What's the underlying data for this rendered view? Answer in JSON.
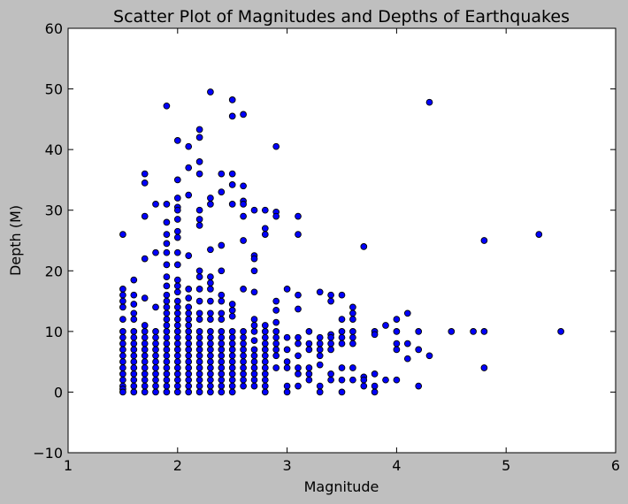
{
  "chart_data": {
    "type": "scatter",
    "title": "Scatter Plot of Magnitudes and Depths of Earthquakes",
    "xlabel": "Magnitude",
    "ylabel": "Depth (M)",
    "xlim": [
      1,
      6
    ],
    "ylim": [
      -10,
      60
    ],
    "xticks": [
      "1",
      "2",
      "3",
      "4",
      "5",
      "6"
    ],
    "yticks": [
      "−10",
      "0",
      "10",
      "20",
      "30",
      "40",
      "50",
      "60"
    ],
    "grid": false,
    "marker_color": "#0000ff",
    "marker_edge": "#000000",
    "points": [
      [
        1.5,
        26
      ],
      [
        1.5,
        17
      ],
      [
        1.5,
        16
      ],
      [
        1.5,
        15
      ],
      [
        1.5,
        14
      ],
      [
        1.5,
        12
      ],
      [
        1.5,
        10
      ],
      [
        1.5,
        9
      ],
      [
        1.5,
        8
      ],
      [
        1.5,
        7
      ],
      [
        1.5,
        6
      ],
      [
        1.5,
        5
      ],
      [
        1.5,
        4
      ],
      [
        1.5,
        3
      ],
      [
        1.5,
        2
      ],
      [
        1.5,
        1
      ],
      [
        1.5,
        0.5
      ],
      [
        1.5,
        0
      ],
      [
        1.6,
        18.5
      ],
      [
        1.6,
        16
      ],
      [
        1.6,
        14.5
      ],
      [
        1.6,
        13
      ],
      [
        1.6,
        12
      ],
      [
        1.6,
        10
      ],
      [
        1.6,
        9
      ],
      [
        1.6,
        8
      ],
      [
        1.6,
        7
      ],
      [
        1.6,
        6
      ],
      [
        1.6,
        5
      ],
      [
        1.6,
        4
      ],
      [
        1.6,
        3
      ],
      [
        1.6,
        2
      ],
      [
        1.6,
        1
      ],
      [
        1.6,
        0
      ],
      [
        1.7,
        36
      ],
      [
        1.7,
        34.5
      ],
      [
        1.7,
        29
      ],
      [
        1.7,
        22
      ],
      [
        1.7,
        15.5
      ],
      [
        1.7,
        11
      ],
      [
        1.7,
        10
      ],
      [
        1.7,
        9
      ],
      [
        1.7,
        8
      ],
      [
        1.7,
        7
      ],
      [
        1.7,
        6
      ],
      [
        1.7,
        5
      ],
      [
        1.7,
        4
      ],
      [
        1.7,
        3
      ],
      [
        1.7,
        2
      ],
      [
        1.7,
        1
      ],
      [
        1.7,
        0
      ],
      [
        1.8,
        31
      ],
      [
        1.8,
        23
      ],
      [
        1.8,
        14
      ],
      [
        1.8,
        10
      ],
      [
        1.8,
        9
      ],
      [
        1.8,
        8
      ],
      [
        1.8,
        7
      ],
      [
        1.8,
        6
      ],
      [
        1.8,
        5
      ],
      [
        1.8,
        4
      ],
      [
        1.8,
        3
      ],
      [
        1.8,
        2
      ],
      [
        1.8,
        1
      ],
      [
        1.8,
        0
      ],
      [
        1.9,
        47.2
      ],
      [
        1.9,
        31
      ],
      [
        1.9,
        28
      ],
      [
        1.9,
        26
      ],
      [
        1.9,
        24.5
      ],
      [
        1.9,
        23
      ],
      [
        1.9,
        21
      ],
      [
        1.9,
        19
      ],
      [
        1.9,
        17.5
      ],
      [
        1.9,
        16
      ],
      [
        1.9,
        15
      ],
      [
        1.9,
        14
      ],
      [
        1.9,
        13
      ],
      [
        1.9,
        12
      ],
      [
        1.9,
        11
      ],
      [
        1.9,
        10
      ],
      [
        1.9,
        9
      ],
      [
        1.9,
        8
      ],
      [
        1.9,
        7
      ],
      [
        1.9,
        6
      ],
      [
        1.9,
        5
      ],
      [
        1.9,
        4
      ],
      [
        1.9,
        3
      ],
      [
        1.9,
        2
      ],
      [
        1.9,
        1
      ],
      [
        1.9,
        0
      ],
      [
        2.0,
        41.5
      ],
      [
        2.0,
        35
      ],
      [
        2.0,
        32
      ],
      [
        2.0,
        30.5
      ],
      [
        2.0,
        30
      ],
      [
        2.0,
        28.5
      ],
      [
        2.0,
        26.5
      ],
      [
        2.0,
        25.5
      ],
      [
        2.0,
        23
      ],
      [
        2.0,
        21
      ],
      [
        2.0,
        18.5
      ],
      [
        2.0,
        17.5
      ],
      [
        2.0,
        16.5
      ],
      [
        2.0,
        15
      ],
      [
        2.0,
        14
      ],
      [
        2.0,
        13
      ],
      [
        2.0,
        12
      ],
      [
        2.0,
        11
      ],
      [
        2.0,
        10
      ],
      [
        2.0,
        9
      ],
      [
        2.0,
        8
      ],
      [
        2.0,
        7
      ],
      [
        2.0,
        6
      ],
      [
        2.0,
        5
      ],
      [
        2.0,
        4
      ],
      [
        2.0,
        3
      ],
      [
        2.0,
        2
      ],
      [
        2.0,
        1
      ],
      [
        2.0,
        0
      ],
      [
        2.1,
        40.5
      ],
      [
        2.1,
        37
      ],
      [
        2.1,
        32.5
      ],
      [
        2.1,
        22.5
      ],
      [
        2.1,
        17
      ],
      [
        2.1,
        15.5
      ],
      [
        2.1,
        14
      ],
      [
        2.1,
        13
      ],
      [
        2.1,
        12
      ],
      [
        2.1,
        11
      ],
      [
        2.1,
        10
      ],
      [
        2.1,
        9
      ],
      [
        2.1,
        8
      ],
      [
        2.1,
        7
      ],
      [
        2.1,
        6
      ],
      [
        2.1,
        5
      ],
      [
        2.1,
        4
      ],
      [
        2.1,
        3
      ],
      [
        2.1,
        2
      ],
      [
        2.1,
        1
      ],
      [
        2.1,
        0
      ],
      [
        2.2,
        43.3
      ],
      [
        2.2,
        42
      ],
      [
        2.2,
        38
      ],
      [
        2.2,
        36
      ],
      [
        2.2,
        30
      ],
      [
        2.2,
        28.5
      ],
      [
        2.2,
        27.5
      ],
      [
        2.2,
        20
      ],
      [
        2.2,
        19
      ],
      [
        2.2,
        17
      ],
      [
        2.2,
        15
      ],
      [
        2.2,
        13
      ],
      [
        2.2,
        12
      ],
      [
        2.2,
        10
      ],
      [
        2.2,
        9
      ],
      [
        2.2,
        8
      ],
      [
        2.2,
        7
      ],
      [
        2.2,
        6
      ],
      [
        2.2,
        5
      ],
      [
        2.2,
        4
      ],
      [
        2.2,
        3
      ],
      [
        2.2,
        2
      ],
      [
        2.2,
        1
      ],
      [
        2.2,
        0
      ],
      [
        2.3,
        49.5
      ],
      [
        2.3,
        32
      ],
      [
        2.3,
        31
      ],
      [
        2.3,
        23.5
      ],
      [
        2.3,
        19
      ],
      [
        2.3,
        18
      ],
      [
        2.3,
        17
      ],
      [
        2.3,
        15
      ],
      [
        2.3,
        13
      ],
      [
        2.3,
        12
      ],
      [
        2.3,
        10
      ],
      [
        2.3,
        9
      ],
      [
        2.3,
        8
      ],
      [
        2.3,
        7
      ],
      [
        2.3,
        6
      ],
      [
        2.3,
        5
      ],
      [
        2.3,
        4
      ],
      [
        2.3,
        3
      ],
      [
        2.3,
        2
      ],
      [
        2.3,
        1
      ],
      [
        2.3,
        0
      ],
      [
        2.4,
        36
      ],
      [
        2.4,
        33
      ],
      [
        2.4,
        24.2
      ],
      [
        2.4,
        20
      ],
      [
        2.4,
        16
      ],
      [
        2.4,
        15
      ],
      [
        2.4,
        13
      ],
      [
        2.4,
        12
      ],
      [
        2.4,
        10
      ],
      [
        2.4,
        9
      ],
      [
        2.4,
        8
      ],
      [
        2.4,
        7
      ],
      [
        2.4,
        6
      ],
      [
        2.4,
        5
      ],
      [
        2.4,
        4
      ],
      [
        2.4,
        3
      ],
      [
        2.4,
        2
      ],
      [
        2.4,
        1
      ],
      [
        2.4,
        0
      ],
      [
        2.5,
        48.2
      ],
      [
        2.5,
        45.5
      ],
      [
        2.5,
        36
      ],
      [
        2.5,
        34.2
      ],
      [
        2.5,
        31
      ],
      [
        2.5,
        14.5
      ],
      [
        2.5,
        13.5
      ],
      [
        2.5,
        12.5
      ],
      [
        2.5,
        10
      ],
      [
        2.5,
        9
      ],
      [
        2.5,
        8
      ],
      [
        2.5,
        7
      ],
      [
        2.5,
        6
      ],
      [
        2.5,
        5
      ],
      [
        2.5,
        4
      ],
      [
        2.5,
        3
      ],
      [
        2.5,
        2
      ],
      [
        2.5,
        1
      ],
      [
        2.5,
        0
      ],
      [
        2.6,
        45.8
      ],
      [
        2.6,
        34
      ],
      [
        2.6,
        31.5
      ],
      [
        2.6,
        31
      ],
      [
        2.6,
        29
      ],
      [
        2.6,
        25
      ],
      [
        2.6,
        17
      ],
      [
        2.6,
        10
      ],
      [
        2.6,
        9
      ],
      [
        2.6,
        8
      ],
      [
        2.6,
        7
      ],
      [
        2.6,
        6
      ],
      [
        2.6,
        5
      ],
      [
        2.6,
        4
      ],
      [
        2.6,
        3
      ],
      [
        2.6,
        2
      ],
      [
        2.6,
        1
      ],
      [
        2.7,
        30
      ],
      [
        2.7,
        22.5
      ],
      [
        2.7,
        22
      ],
      [
        2.7,
        20
      ],
      [
        2.7,
        16.5
      ],
      [
        2.7,
        12
      ],
      [
        2.7,
        11
      ],
      [
        2.7,
        10
      ],
      [
        2.7,
        8.5
      ],
      [
        2.7,
        7
      ],
      [
        2.7,
        6
      ],
      [
        2.7,
        5
      ],
      [
        2.7,
        4
      ],
      [
        2.7,
        3
      ],
      [
        2.7,
        2
      ],
      [
        2.7,
        1
      ],
      [
        2.8,
        30
      ],
      [
        2.8,
        27
      ],
      [
        2.8,
        26
      ],
      [
        2.8,
        11
      ],
      [
        2.8,
        10
      ],
      [
        2.8,
        9
      ],
      [
        2.8,
        8
      ],
      [
        2.8,
        7
      ],
      [
        2.8,
        6
      ],
      [
        2.8,
        5
      ],
      [
        2.8,
        4
      ],
      [
        2.8,
        3
      ],
      [
        2.8,
        2
      ],
      [
        2.8,
        1
      ],
      [
        2.8,
        0
      ],
      [
        2.9,
        40.5
      ],
      [
        2.9,
        29.7
      ],
      [
        2.9,
        29
      ],
      [
        2.9,
        15
      ],
      [
        2.9,
        13.5
      ],
      [
        2.9,
        11.5
      ],
      [
        2.9,
        10
      ],
      [
        2.9,
        9
      ],
      [
        2.9,
        8
      ],
      [
        2.9,
        7
      ],
      [
        2.9,
        6
      ],
      [
        2.9,
        4
      ],
      [
        3.0,
        17
      ],
      [
        3.0,
        9
      ],
      [
        3.0,
        7
      ],
      [
        3.0,
        5
      ],
      [
        3.0,
        4
      ],
      [
        3.0,
        1
      ],
      [
        3.0,
        0
      ],
      [
        3.1,
        29
      ],
      [
        3.1,
        26
      ],
      [
        3.1,
        16
      ],
      [
        3.1,
        13.7
      ],
      [
        3.1,
        9
      ],
      [
        3.1,
        8
      ],
      [
        3.1,
        6
      ],
      [
        3.1,
        4
      ],
      [
        3.1,
        3
      ],
      [
        3.1,
        1
      ],
      [
        3.2,
        10
      ],
      [
        3.2,
        8
      ],
      [
        3.2,
        7
      ],
      [
        3.2,
        4
      ],
      [
        3.2,
        3
      ],
      [
        3.2,
        2
      ],
      [
        3.3,
        16.5
      ],
      [
        3.3,
        9
      ],
      [
        3.3,
        8
      ],
      [
        3.3,
        7
      ],
      [
        3.3,
        6
      ],
      [
        3.3,
        4.5
      ],
      [
        3.3,
        1
      ],
      [
        3.3,
        0
      ],
      [
        3.4,
        16
      ],
      [
        3.4,
        15
      ],
      [
        3.4,
        9.5
      ],
      [
        3.4,
        9
      ],
      [
        3.4,
        8
      ],
      [
        3.4,
        7
      ],
      [
        3.4,
        3
      ],
      [
        3.4,
        2
      ],
      [
        3.5,
        16
      ],
      [
        3.5,
        12
      ],
      [
        3.5,
        10
      ],
      [
        3.5,
        9
      ],
      [
        3.5,
        8
      ],
      [
        3.5,
        4
      ],
      [
        3.5,
        2
      ],
      [
        3.5,
        0
      ],
      [
        3.6,
        14
      ],
      [
        3.6,
        13
      ],
      [
        3.6,
        12
      ],
      [
        3.6,
        10
      ],
      [
        3.6,
        9
      ],
      [
        3.6,
        8
      ],
      [
        3.6,
        4
      ],
      [
        3.6,
        2
      ],
      [
        3.7,
        24
      ],
      [
        3.7,
        2.5
      ],
      [
        3.7,
        2
      ],
      [
        3.7,
        1
      ],
      [
        3.8,
        10
      ],
      [
        3.8,
        9.5
      ],
      [
        3.8,
        3
      ],
      [
        3.8,
        1
      ],
      [
        3.8,
        0
      ],
      [
        3.9,
        11
      ],
      [
        3.9,
        2
      ],
      [
        4.0,
        12
      ],
      [
        4.0,
        10
      ],
      [
        4.0,
        8
      ],
      [
        4.0,
        7
      ],
      [
        4.0,
        2
      ],
      [
        4.1,
        13
      ],
      [
        4.1,
        8
      ],
      [
        4.1,
        5.5
      ],
      [
        4.2,
        10
      ],
      [
        4.2,
        7
      ],
      [
        4.2,
        1
      ],
      [
        4.3,
        47.8
      ],
      [
        4.3,
        6
      ],
      [
        4.5,
        10
      ],
      [
        4.7,
        10
      ],
      [
        4.8,
        25
      ],
      [
        4.8,
        10
      ],
      [
        4.8,
        4
      ],
      [
        5.3,
        26
      ],
      [
        5.5,
        10
      ]
    ]
  }
}
